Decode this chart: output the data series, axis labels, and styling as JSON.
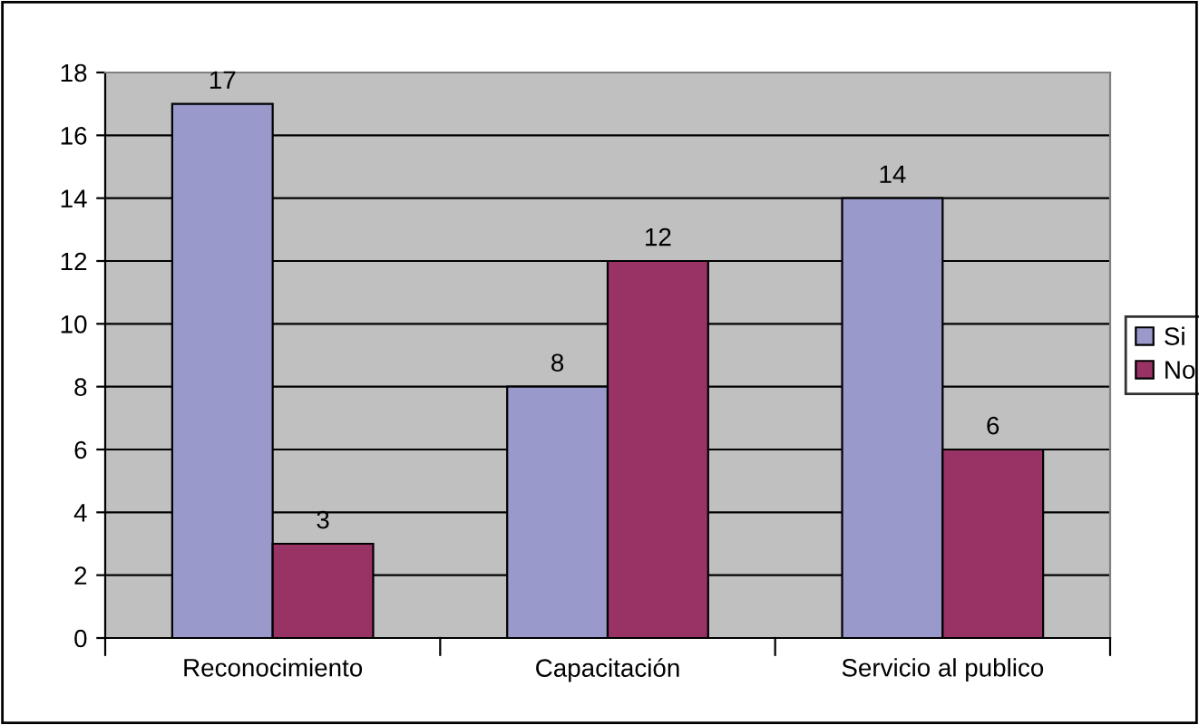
{
  "chart_data": {
    "type": "bar",
    "categories": [
      "Reconocimiento",
      "Capacitación",
      "Servicio al publico"
    ],
    "series": [
      {
        "name": "Si",
        "color": "#9999cc",
        "values": [
          17,
          8,
          14
        ]
      },
      {
        "name": "No",
        "color": "#993366",
        "values": [
          3,
          12,
          6
        ]
      }
    ],
    "ylim": [
      0,
      18
    ],
    "yticks": [
      0,
      2,
      4,
      6,
      8,
      10,
      12,
      14,
      16,
      18
    ],
    "grid": "y",
    "legend": "right",
    "data_labels": true
  }
}
